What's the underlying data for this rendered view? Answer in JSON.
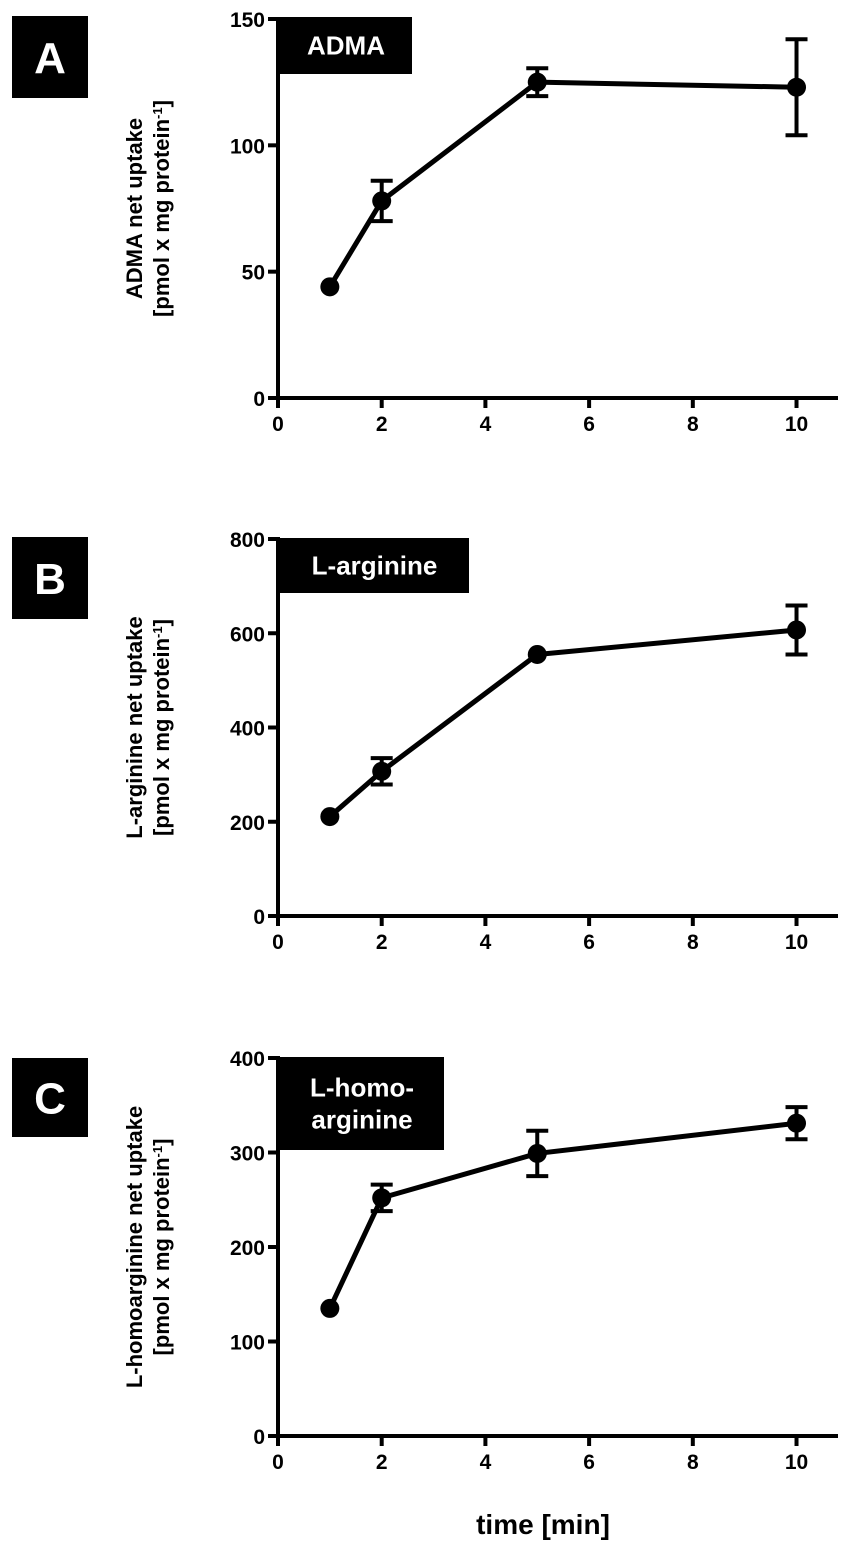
{
  "chart_data": [
    {
      "type": "line",
      "panel_letter": "A",
      "tag_lines": [
        "ADMA"
      ],
      "ylabel_lines": [
        "ADMA net uptake",
        "[pmol x mg protein",
        "]"
      ],
      "ylabel_superscript": "-1",
      "xticks": [
        0,
        2,
        4,
        6,
        8,
        10
      ],
      "yticks": [
        0,
        50,
        100,
        150
      ],
      "xlim": [
        0,
        10.8
      ],
      "ylim": [
        0,
        150
      ],
      "series": [
        {
          "x": [
            1,
            2,
            5,
            10
          ],
          "values": [
            44,
            78,
            125,
            123
          ],
          "error": [
            0,
            8,
            5.5,
            19
          ]
        }
      ]
    },
    {
      "type": "line",
      "panel_letter": "B",
      "tag_lines": [
        "L-arginine"
      ],
      "ylabel_lines": [
        "L-arginine net uptake",
        "[pmol x mg protein",
        "]"
      ],
      "ylabel_superscript": "-1",
      "xticks": [
        0,
        2,
        4,
        6,
        8,
        10
      ],
      "yticks": [
        0,
        200,
        400,
        600,
        800
      ],
      "xlim": [
        0,
        10.8
      ],
      "ylim": [
        0,
        800
      ],
      "series": [
        {
          "x": [
            1,
            2,
            5,
            10
          ],
          "values": [
            211,
            307,
            555,
            607
          ],
          "error": [
            0,
            28,
            0,
            52
          ]
        }
      ]
    },
    {
      "type": "line",
      "panel_letter": "C",
      "tag_lines": [
        "L-homo-",
        "arginine"
      ],
      "ylabel_lines": [
        "L-homoarginine net uptake",
        "[pmol x mg protein",
        "]"
      ],
      "ylabel_superscript": "-1",
      "xticks": [
        0,
        2,
        4,
        6,
        8,
        10
      ],
      "yticks": [
        0,
        100,
        200,
        300,
        400
      ],
      "xlim": [
        0,
        10.8
      ],
      "ylim": [
        0,
        400
      ],
      "xlabel": "time [min]",
      "series": [
        {
          "x": [
            1,
            2,
            5,
            10
          ],
          "values": [
            135,
            252,
            299,
            331
          ],
          "error": [
            0,
            14,
            24,
            17
          ]
        }
      ]
    }
  ]
}
